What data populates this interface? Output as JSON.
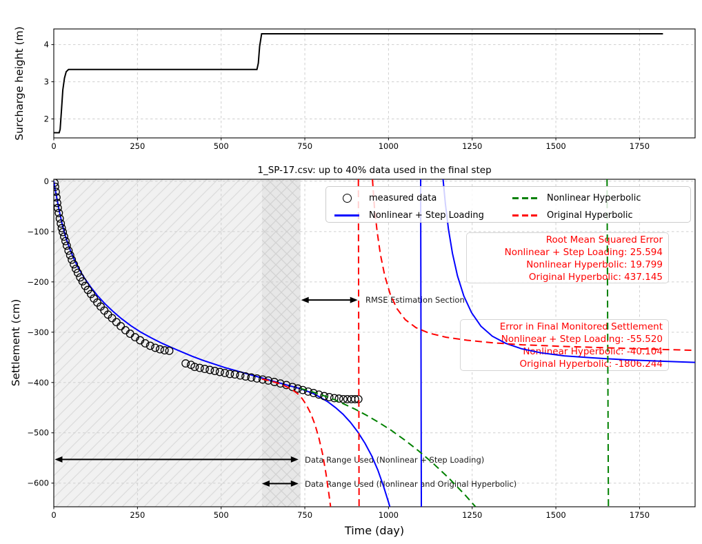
{
  "figure_bg": "#ffffff",
  "chart_data": [
    {
      "id": "surcharge",
      "type": "line",
      "title": "",
      "xlabel": "",
      "ylabel": "Surcharge height (m)",
      "xlim": [
        0,
        1916
      ],
      "ylim": [
        1.49,
        4.42
      ],
      "xticks": [
        0,
        250,
        500,
        750,
        1000,
        1250,
        1500,
        1750
      ],
      "yticks": [
        2,
        3,
        4
      ],
      "grid": true,
      "series": [
        {
          "name": "surcharge-height",
          "color": "#000000",
          "dash": "",
          "width": 2,
          "segments": [
            [
              [
                0,
                1.63
              ],
              [
                16,
                1.63
              ],
              [
                19,
                1.72
              ],
              [
                23,
                2.25
              ],
              [
                27,
                2.78
              ],
              [
                32,
                3.1
              ],
              [
                37,
                3.27
              ],
              [
                44,
                3.33
              ],
              [
                607,
                3.33
              ],
              [
                611,
                3.5
              ],
              [
                615,
                3.95
              ],
              [
                621,
                4.29
              ],
              [
                1820,
                4.29
              ]
            ]
          ]
        }
      ]
    },
    {
      "id": "settlement",
      "type": "scatter+line",
      "title": "1_SP-17.csv: up to 40% data used in the final step",
      "xlabel": "Time (day)",
      "ylabel": "Settlement (cm)",
      "xlim": [
        0,
        1916
      ],
      "ylim": [
        -647,
        4
      ],
      "xticks": [
        0,
        250,
        500,
        750,
        1000,
        1250,
        1500,
        1750
      ],
      "yticks": [
        0,
        -100,
        -200,
        -300,
        -400,
        -500,
        -600
      ],
      "grid": true,
      "regions": [
        {
          "name": "step-loading-range",
          "x0": 0,
          "x1": 737,
          "hatch": "diag"
        },
        {
          "name": "hyperbolic-range",
          "x0": 622,
          "x1": 737,
          "hatch": "cross"
        }
      ],
      "measured": {
        "name": "measured data",
        "color": "#000000",
        "points": [
          [
            2,
            -3
          ],
          [
            4,
            -11
          ],
          [
            6,
            -21
          ],
          [
            8,
            -32
          ],
          [
            10,
            -43
          ],
          [
            12,
            -53
          ],
          [
            15,
            -63
          ],
          [
            18,
            -74
          ],
          [
            21,
            -84
          ],
          [
            24,
            -93
          ],
          [
            27,
            -101
          ],
          [
            31,
            -110
          ],
          [
            35,
            -119
          ],
          [
            39,
            -128
          ],
          [
            44,
            -138
          ],
          [
            49,
            -147
          ],
          [
            54,
            -156
          ],
          [
            60,
            -165
          ],
          [
            66,
            -174
          ],
          [
            72,
            -182
          ],
          [
            79,
            -191
          ],
          [
            86,
            -199
          ],
          [
            94,
            -208
          ],
          [
            102,
            -216
          ],
          [
            111,
            -224
          ],
          [
            120,
            -233
          ],
          [
            130,
            -241
          ],
          [
            140,
            -249
          ],
          [
            151,
            -257
          ],
          [
            162,
            -265
          ],
          [
            174,
            -272
          ],
          [
            187,
            -280
          ],
          [
            200,
            -288
          ],
          [
            214,
            -296
          ],
          [
            228,
            -303
          ],
          [
            243,
            -310
          ],
          [
            258,
            -316
          ],
          [
            273,
            -322
          ],
          [
            288,
            -327
          ],
          [
            303,
            -331
          ],
          [
            317,
            -334
          ],
          [
            331,
            -336
          ],
          [
            345,
            -337
          ],
          [
            394,
            -362
          ],
          [
            410,
            -365
          ],
          [
            421,
            -369
          ],
          [
            436,
            -371
          ],
          [
            451,
            -373
          ],
          [
            466,
            -375
          ],
          [
            481,
            -377
          ],
          [
            496,
            -379
          ],
          [
            511,
            -381
          ],
          [
            526,
            -383
          ],
          [
            541,
            -384
          ],
          [
            557,
            -386
          ],
          [
            573,
            -388
          ],
          [
            590,
            -390
          ],
          [
            607,
            -392
          ],
          [
            624,
            -394
          ],
          [
            641,
            -396
          ],
          [
            659,
            -399
          ],
          [
            677,
            -402
          ],
          [
            695,
            -405
          ],
          [
            713,
            -409
          ],
          [
            729,
            -412
          ],
          [
            744,
            -415
          ],
          [
            760,
            -418
          ],
          [
            776,
            -421
          ],
          [
            792,
            -424
          ],
          [
            808,
            -427
          ],
          [
            823,
            -429
          ],
          [
            838,
            -431
          ],
          [
            852,
            -432
          ],
          [
            865,
            -433
          ],
          [
            877,
            -433
          ],
          [
            889,
            -433
          ],
          [
            900,
            -433
          ],
          [
            910,
            -433
          ]
        ]
      },
      "series": [
        {
          "name": "Nonlinear + Step Loading",
          "color": "#0000ff",
          "dash": "",
          "width": 2,
          "segments": [
            [
              [
                0,
                0
              ],
              [
                8,
                -30
              ],
              [
                16,
                -58
              ],
              [
                25,
                -85
              ],
              [
                35,
                -110
              ],
              [
                47,
                -133
              ],
              [
                60,
                -154
              ],
              [
                75,
                -174
              ],
              [
                92,
                -193
              ],
              [
                110,
                -210
              ],
              [
                130,
                -227
              ],
              [
                152,
                -243
              ],
              [
                176,
                -258
              ],
              [
                202,
                -273
              ],
              [
                230,
                -287
              ],
              [
                260,
                -300
              ],
              [
                290,
                -311
              ],
              [
                320,
                -321
              ],
              [
                350,
                -330
              ],
              [
                382,
                -339
              ],
              [
                414,
                -348
              ],
              [
                446,
                -356
              ],
              [
                478,
                -363
              ],
              [
                510,
                -370
              ],
              [
                542,
                -376
              ],
              [
                574,
                -382
              ],
              [
                606,
                -388
              ],
              [
                638,
                -394
              ],
              [
                670,
                -400
              ],
              [
                702,
                -406
              ],
              [
                730,
                -411
              ],
              [
                752,
                -416
              ],
              [
                775,
                -422
              ],
              [
                798,
                -430
              ],
              [
                820,
                -439
              ],
              [
                842,
                -450
              ],
              [
                864,
                -463
              ],
              [
                886,
                -479
              ],
              [
                908,
                -498
              ],
              [
                930,
                -521
              ],
              [
                950,
                -546
              ],
              [
                968,
                -574
              ],
              [
                985,
                -606
              ],
              [
                1000,
                -638
              ],
              [
                1004,
                -647
              ]
            ],
            [
              [
                1096,
                4
              ],
              [
                1098,
                -647
              ]
            ],
            [
              [
                1163,
                4
              ],
              [
                1170,
                -45
              ],
              [
                1179,
                -95
              ],
              [
                1191,
                -143
              ],
              [
                1206,
                -188
              ],
              [
                1225,
                -228
              ],
              [
                1248,
                -261
              ],
              [
                1276,
                -288
              ],
              [
                1310,
                -308
              ],
              [
                1350,
                -322
              ],
              [
                1398,
                -333
              ],
              [
                1455,
                -341
              ],
              [
                1525,
                -347
              ],
              [
                1610,
                -351
              ],
              [
                1710,
                -355
              ],
              [
                1830,
                -358
              ],
              [
                1916,
                -360
              ]
            ]
          ]
        },
        {
          "name": "Nonlinear Hyperbolic",
          "color": "#008000",
          "dash": "10,6",
          "width": 2,
          "segments": [
            [
              [
                737,
                -412
              ],
              [
                760,
                -416
              ],
              [
                784,
                -421
              ],
              [
                810,
                -427
              ],
              [
                838,
                -434
              ],
              [
                868,
                -443
              ],
              [
                900,
                -453
              ],
              [
                934,
                -465
              ],
              [
                970,
                -479
              ],
              [
                1008,
                -495
              ],
              [
                1048,
                -514
              ],
              [
                1090,
                -536
              ],
              [
                1134,
                -561
              ],
              [
                1180,
                -590
              ],
              [
                1228,
                -623
              ],
              [
                1260,
                -647
              ]
            ],
            [
              [
                1653,
                4
              ],
              [
                1657,
                -647
              ]
            ]
          ]
        },
        {
          "name": "Original Hyperbolic",
          "color": "#ff0000",
          "dash": "10,6",
          "width": 2,
          "segments": [
            [
              [
                622,
                -393
              ],
              [
                648,
                -397
              ],
              [
                672,
                -402
              ],
              [
                694,
                -408
              ],
              [
                712,
                -414
              ],
              [
                728,
                -422
              ],
              [
                742,
                -432
              ],
              [
                755,
                -445
              ],
              [
                768,
                -462
              ],
              [
                780,
                -483
              ],
              [
                792,
                -510
              ],
              [
                803,
                -542
              ],
              [
                813,
                -580
              ],
              [
                822,
                -622
              ],
              [
                827,
                -647
              ]
            ],
            [
              [
                910,
                4
              ],
              [
                912,
                -647
              ]
            ],
            [
              [
                952,
                4
              ],
              [
                958,
                -52
              ],
              [
                966,
                -100
              ],
              [
                976,
                -146
              ],
              [
                989,
                -188
              ],
              [
                1005,
                -224
              ],
              [
                1025,
                -253
              ],
              [
                1050,
                -275
              ],
              [
                1082,
                -291
              ],
              [
                1122,
                -302
              ],
              [
                1172,
                -310
              ],
              [
                1235,
                -316
              ],
              [
                1310,
                -321
              ],
              [
                1400,
                -325
              ],
              [
                1510,
                -328
              ],
              [
                1650,
                -331
              ],
              [
                1800,
                -334
              ],
              [
                1916,
                -336
              ]
            ]
          ]
        }
      ],
      "legend": {
        "items": [
          {
            "label": "measured data",
            "marker": "circle",
            "color": "#000000"
          },
          {
            "label": "Nonlinear Hyperbolic",
            "marker": "dashed",
            "color": "#008000"
          },
          {
            "label": "Nonlinear + Step Loading",
            "marker": "line",
            "color": "#0000ff"
          },
          {
            "label": "Original Hyperbolic",
            "marker": "dashed",
            "color": "#ff0000"
          }
        ]
      },
      "annotations": {
        "text_color": "#ff0000",
        "rmse_box": {
          "title": "Root Mean Squared Error",
          "lines": [
            "Nonlinear + Step Loading: 25.594",
            "Nonlinear Hyperbolic: 19.799",
            "Original Hyperbolic: 437.145"
          ]
        },
        "error_box": {
          "title": "Error in Final Monitored Settlement",
          "lines": [
            "Nonlinear + Step Loading: -55.520",
            "Nonlinear Hyperbolic: -40.104",
            "Original Hyperbolic: -1806.244"
          ]
        },
        "arrows": [
          {
            "name": "rmse-estimation-section",
            "x0": 739,
            "x1": 908,
            "y": -236,
            "label": "RMSE Estimation Section"
          },
          {
            "name": "range-step-loading",
            "x0": 3,
            "x1": 731,
            "y": -553,
            "label": "Data Range Used (Nonlinear + Step Loading)"
          },
          {
            "name": "range-hyperbolic",
            "x0": 622,
            "x1": 731,
            "y": -601,
            "label": "Data Range Used (Nonlinear and Original Hyperbolic)"
          }
        ]
      }
    }
  ]
}
